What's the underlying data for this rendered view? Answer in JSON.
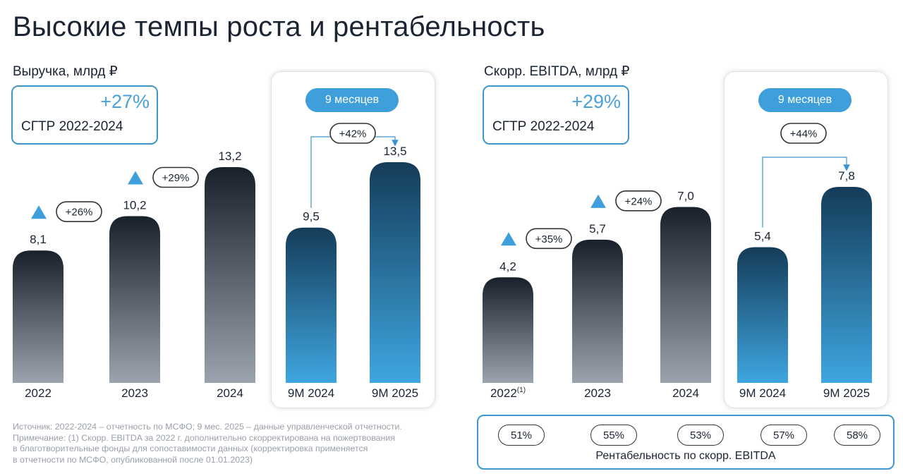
{
  "title": "Высокие темпы роста и рентабельность",
  "revenue": {
    "subtitle": "Выручка, млрд ₽",
    "cagr_value": "+27%",
    "cagr_label": "СГТР 2022-2024",
    "period_label": "9 месяцев"
  },
  "ebitda": {
    "subtitle": "Скорр. EBITDA, млрд ₽",
    "cagr_value": "+29%",
    "cagr_label": "СГТР 2022-2024",
    "period_label": "9 месяцев",
    "margin_label": "Рентабельность по скорр. EBITDA",
    "margins": [
      "51%",
      "55%",
      "53%",
      "57%",
      "58%"
    ]
  },
  "notes": [
    "Источник: 2022-2024 – отчетность по МСФО; 9 мес. 2025 – данные управленческой отчетности.",
    "Примечание: (1) Скорр. EBITDA за 2022 г. дополнительно скорректирована на пожертвования",
    "в благотворительные фонды для сопоставимости данных (корректировка применяется",
    "в отчетности по МСФО, опубликованной после 01.01.2023)"
  ],
  "colors": {
    "annual_bar_top": "#18202b",
    "annual_bar_bottom": "#9aa3ae",
    "period_bar_top": "#143c58",
    "period_bar_bottom": "#3fa6e0",
    "accent": "#3f9fdb",
    "arrow": "#3d93d0"
  },
  "chart_data": [
    {
      "type": "bar",
      "title": "Выручка, млрд ₽",
      "categories": [
        "2022",
        "2023",
        "2024",
        "9M 2024",
        "9M 2025"
      ],
      "values": [
        8.1,
        10.2,
        13.2,
        9.5,
        13.5
      ],
      "value_labels": [
        "8,1",
        "10,2",
        "13,2",
        "9,5",
        "13,5"
      ],
      "growth_labels": [
        {
          "text": "+26%",
          "category": "2022"
        },
        {
          "text": "+29%",
          "category": "2023"
        },
        {
          "text": "+42%",
          "from": "9M 2024",
          "to": "9M 2025"
        }
      ]
    },
    {
      "type": "bar",
      "title": "Скорр. EBITDA, млрд ₽",
      "categories": [
        "2022",
        "2023",
        "2024",
        "9M 2024",
        "9M 2025"
      ],
      "category_superscripts": [
        "(1)",
        "",
        "",
        "",
        ""
      ],
      "values": [
        4.2,
        5.7,
        7.0,
        5.4,
        7.8
      ],
      "value_labels": [
        "4,2",
        "5,7",
        "7,0",
        "5,4",
        "7,8"
      ],
      "growth_labels": [
        {
          "text": "+35%",
          "category": "2022"
        },
        {
          "text": "+24%",
          "category": "2023"
        },
        {
          "text": "+44%",
          "from": "9M 2024",
          "to": "9M 2025"
        }
      ],
      "margins": [
        "51%",
        "55%",
        "53%",
        "57%",
        "58%"
      ]
    }
  ]
}
